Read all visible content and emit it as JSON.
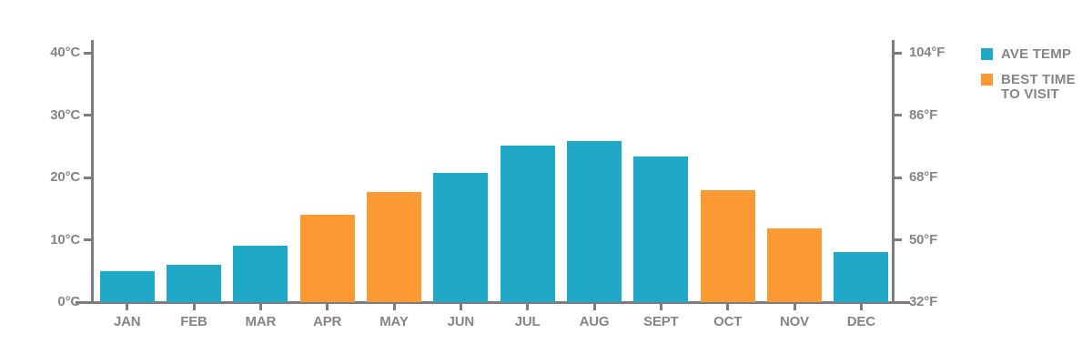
{
  "chart_data": {
    "type": "bar",
    "title": "",
    "categories": [
      "JAN",
      "FEB",
      "MAR",
      "APR",
      "MAY",
      "JUN",
      "JUL",
      "AUG",
      "SEPT",
      "OCT",
      "NOV",
      "DEC"
    ],
    "values_c": [
      5,
      6,
      9,
      14,
      17.7,
      20.8,
      25.1,
      25.8,
      23.4,
      17.9,
      11.9,
      8
    ],
    "best_time_months": [
      "APR",
      "MAY",
      "OCT",
      "NOV"
    ],
    "ylim": [
      0,
      40
    ],
    "grid": false,
    "y_ticks": [
      {
        "value": 0,
        "label_c": "0°C",
        "label_f": "32°F"
      },
      {
        "value": 10,
        "label_c": "10°C",
        "label_f": "50°F"
      },
      {
        "value": 20,
        "label_c": "20°C",
        "label_f": "68°F"
      },
      {
        "value": 30,
        "label_c": "30°C",
        "label_f": "86°F"
      },
      {
        "value": 40,
        "label_c": "40°C",
        "label_f": "104°F"
      }
    ],
    "colors": {
      "ave_temp": "#1FA9C6",
      "best_time": "#FB9A32",
      "axis": "#7C7D80",
      "label": "#858588"
    },
    "legend": {
      "position": "top-right",
      "items": [
        {
          "label": "AVE TEMP",
          "swatch": "#1FA9C6"
        },
        {
          "label_line1": "BEST TIME",
          "label_line2": "TO VISIT",
          "swatch": "#FB9A32"
        }
      ]
    }
  }
}
